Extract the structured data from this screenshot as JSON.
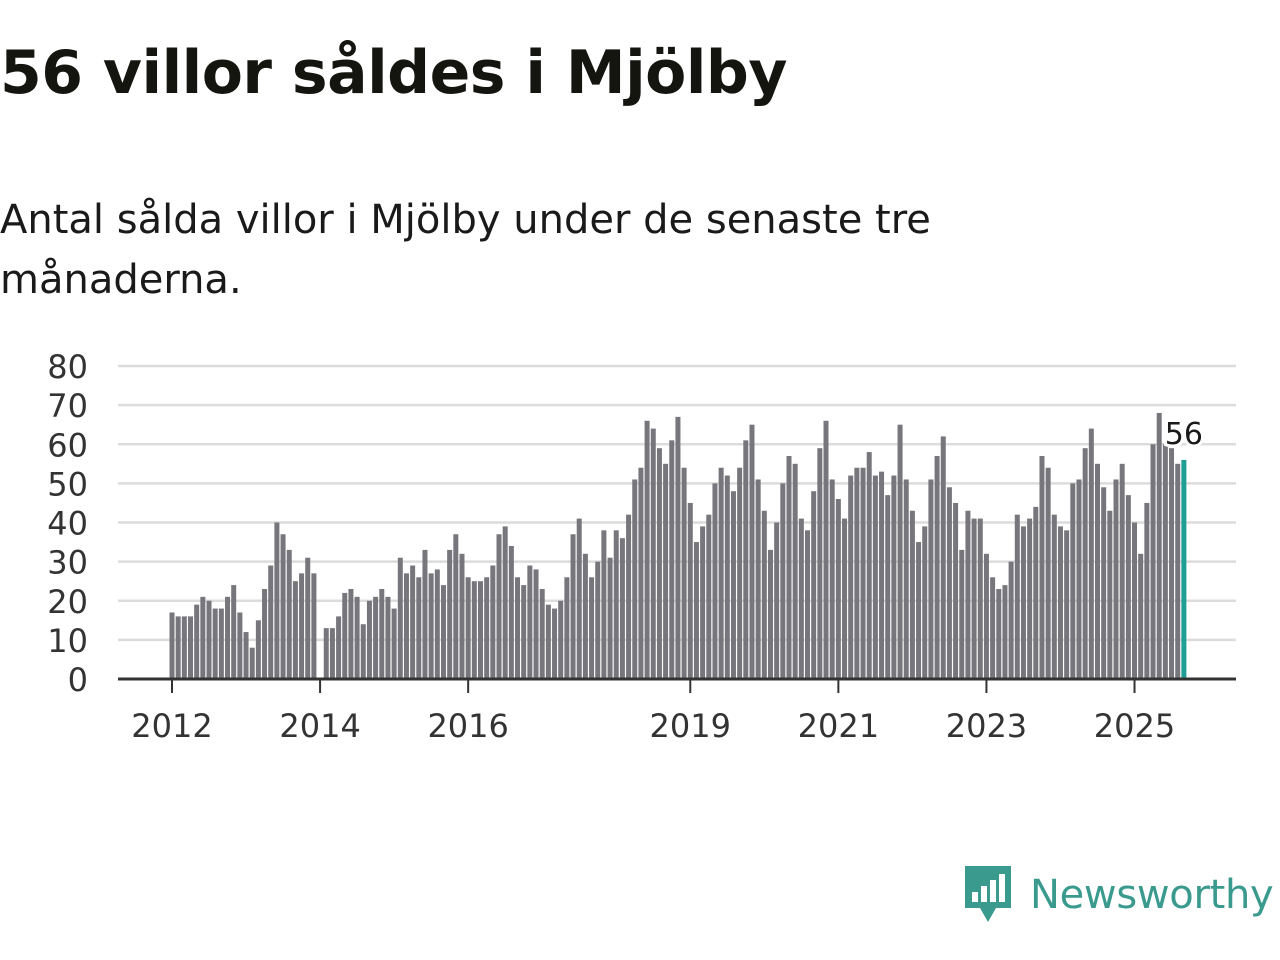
{
  "title": "56 villor såldes i Mjölby",
  "subtitle": "Antal sålda villor i Mjölby under de senaste tre månaderna.",
  "brand": {
    "name": "Newsworthy",
    "icon": "newsworthy-logo-icon",
    "color": "#3a9a8e"
  },
  "colors": {
    "bar": "#76767c",
    "highlight": "#1f9e94",
    "grid": "#dcdcdc",
    "axis": "#333333"
  },
  "chart_data": {
    "type": "bar",
    "title": "56 villor såldes i Mjölby",
    "xlabel": "",
    "ylabel": "",
    "ylim": [
      0,
      80
    ],
    "yticks": [
      "0",
      "10",
      "20",
      "30",
      "40",
      "50",
      "60",
      "70",
      "80"
    ],
    "xticks": [
      "2012",
      "2014",
      "2016",
      "2019",
      "2021",
      "2023",
      "2025"
    ],
    "xtick_positions": [
      0,
      24,
      48,
      84,
      108,
      132,
      156
    ],
    "highlight_label": "56",
    "values": [
      17,
      16,
      16,
      16,
      19,
      21,
      20,
      18,
      18,
      21,
      24,
      17,
      12,
      8,
      15,
      23,
      29,
      40,
      37,
      33,
      25,
      27,
      31,
      27,
      null,
      13,
      13,
      16,
      22,
      23,
      21,
      14,
      20,
      21,
      23,
      21,
      18,
      31,
      27,
      29,
      26,
      33,
      27,
      28,
      24,
      33,
      37,
      32,
      26,
      25,
      25,
      26,
      29,
      37,
      39,
      34,
      26,
      24,
      29,
      28,
      23,
      19,
      18,
      20,
      26,
      37,
      41,
      32,
      26,
      30,
      38,
      31,
      38,
      36,
      42,
      51,
      54,
      66,
      64,
      59,
      55,
      61,
      67,
      54,
      45,
      35,
      39,
      42,
      50,
      54,
      52,
      48,
      54,
      61,
      65,
      51,
      43,
      33,
      40,
      50,
      57,
      55,
      41,
      38,
      48,
      59,
      66,
      51,
      46,
      41,
      52,
      54,
      54,
      58,
      52,
      53,
      47,
      52,
      65,
      51,
      43,
      35,
      39,
      51,
      57,
      62,
      49,
      45,
      33,
      43,
      41,
      41,
      32,
      26,
      23,
      24,
      30,
      42,
      39,
      41,
      44,
      57,
      54,
      42,
      39,
      38,
      50,
      51,
      59,
      64,
      55,
      49,
      43,
      51,
      55,
      47,
      40,
      32,
      45,
      60,
      68,
      60,
      59,
      55,
      56
    ]
  }
}
